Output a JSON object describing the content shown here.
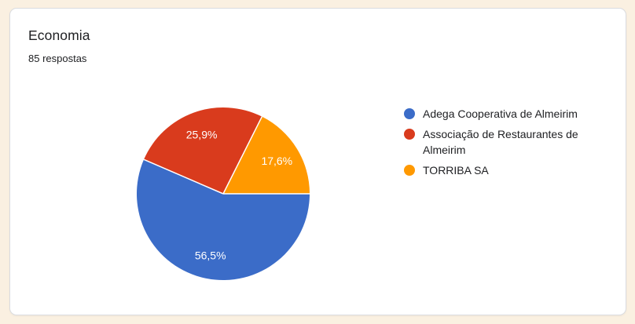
{
  "page": {
    "background_color": "#FAF0E1"
  },
  "card": {
    "title": "Economia",
    "subtitle": "85 respostas",
    "background_color": "#FFFFFF",
    "border_color": "#DADCE0"
  },
  "chart_data": {
    "type": "pie",
    "title": "Economia",
    "subtitle": "85 respostas",
    "total_responses": 85,
    "legend_position": "right",
    "start_angle_deg": 0,
    "direction": "clockwise",
    "label_color": "#FFFFFF",
    "slices": [
      {
        "label": "Adega Cooperativa de Almeirim",
        "percent": 56.5,
        "display": "56,5%",
        "color": "#3B6CC8"
      },
      {
        "label": "Associação de Restaurantes de Almeirim",
        "percent": 25.9,
        "display": "25,9%",
        "color": "#D93B1D"
      },
      {
        "label": "TORRIBA SA",
        "percent": 17.6,
        "display": "17,6%",
        "color": "#FF9900"
      }
    ]
  }
}
